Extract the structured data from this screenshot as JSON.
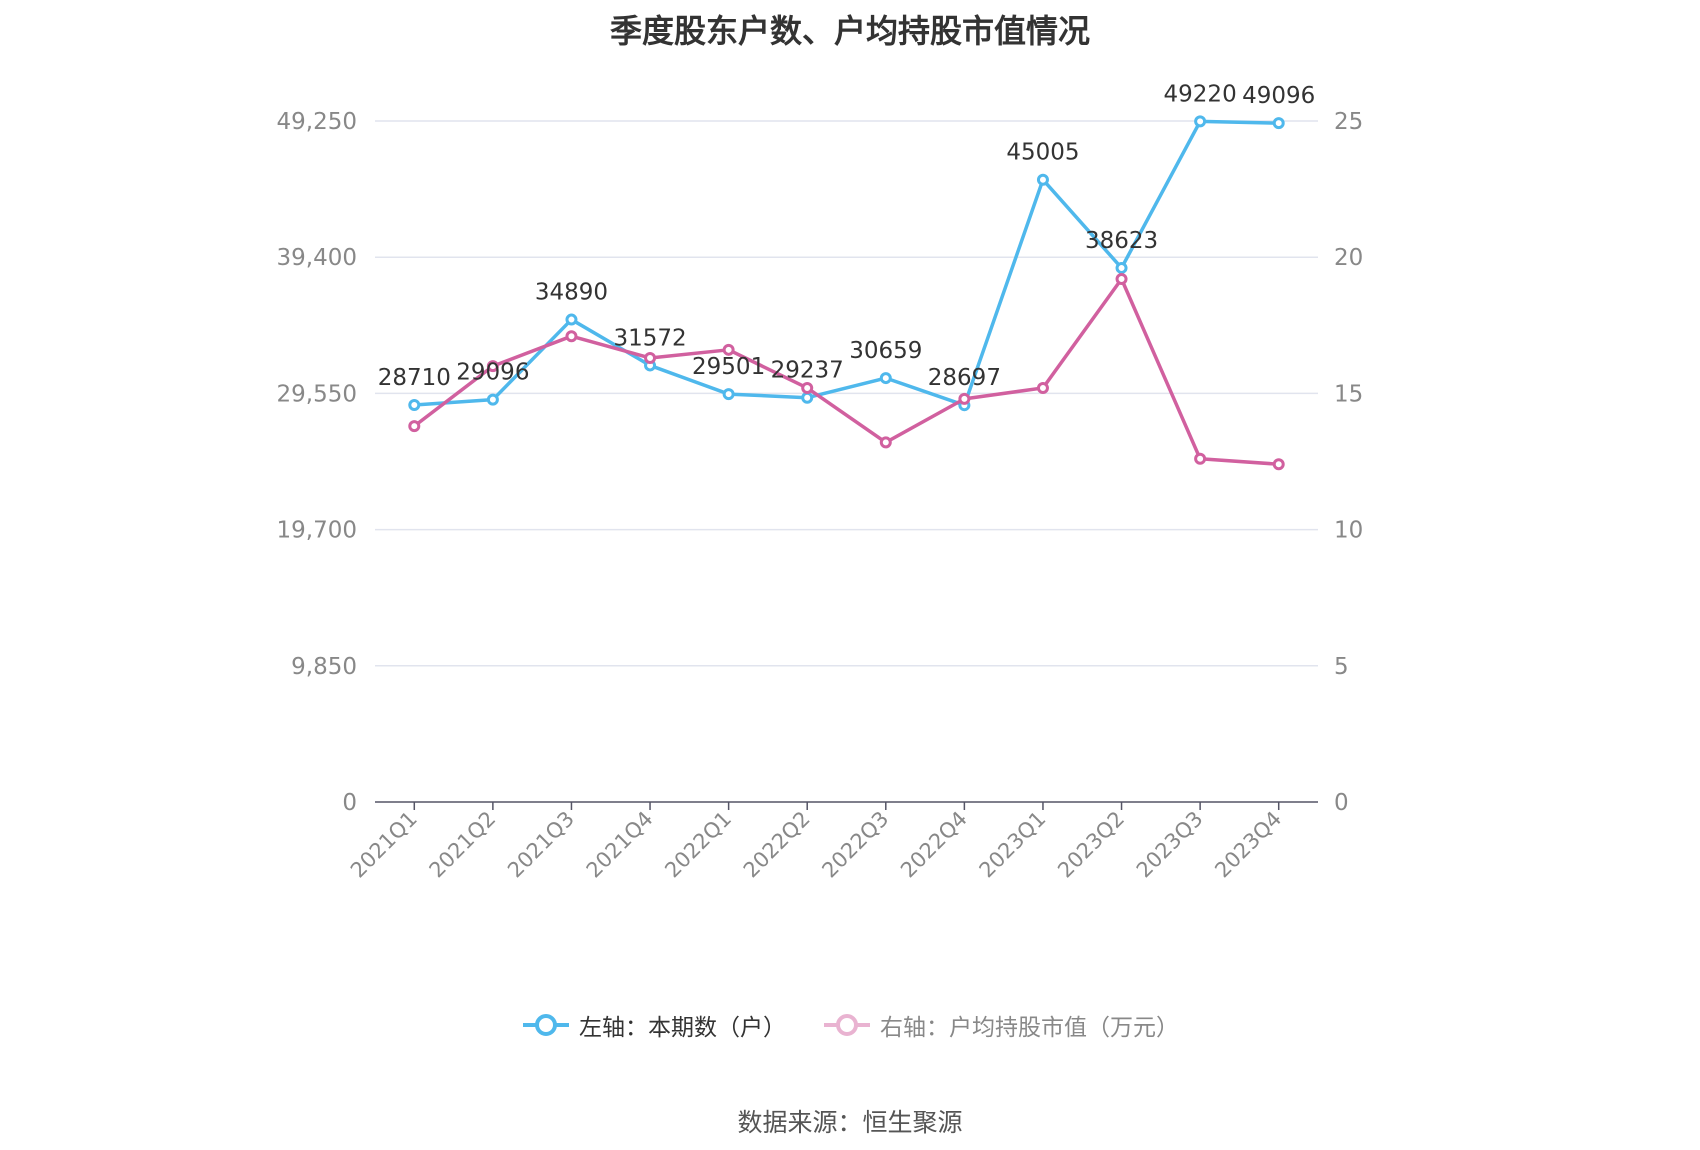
{
  "chart_data": {
    "type": "line",
    "title": "季度股东户数、户均持股市值情况",
    "categories": [
      "2021Q1",
      "2021Q2",
      "2021Q3",
      "2021Q4",
      "2022Q1",
      "2022Q2",
      "2022Q3",
      "2022Q4",
      "2023Q1",
      "2023Q2",
      "2023Q3",
      "2023Q4"
    ],
    "series": [
      {
        "name": "左轴：本期数（户）",
        "axis": "left",
        "color": "#4fb8ec",
        "values": [
          28710,
          29096,
          34890,
          31572,
          29501,
          29237,
          30659,
          28697,
          45005,
          38623,
          49220,
          49096
        ],
        "data_labels": [
          "28710",
          "29096",
          "34890",
          "31572",
          "29501",
          "29237",
          "30659",
          "28697",
          "45005",
          "38623",
          "49220",
          "49096"
        ]
      },
      {
        "name": "右轴：户均持股市值（万元）",
        "axis": "right",
        "color": "#d1609f",
        "values": [
          13.8,
          16.0,
          17.1,
          16.3,
          16.6,
          15.2,
          13.2,
          14.8,
          15.2,
          19.2,
          12.6,
          12.4
        ]
      }
    ],
    "left_axis": {
      "ticks": [
        "0",
        "9,850",
        "19,700",
        "29,550",
        "39,400",
        "49,250"
      ],
      "ylim": [
        0,
        49250
      ]
    },
    "right_axis": {
      "ticks": [
        "0",
        "5",
        "10",
        "15",
        "20",
        "25"
      ],
      "ylim": [
        0,
        25
      ]
    },
    "grid": true,
    "legend_position": "bottom"
  },
  "source": "数据来源：恒生聚源"
}
